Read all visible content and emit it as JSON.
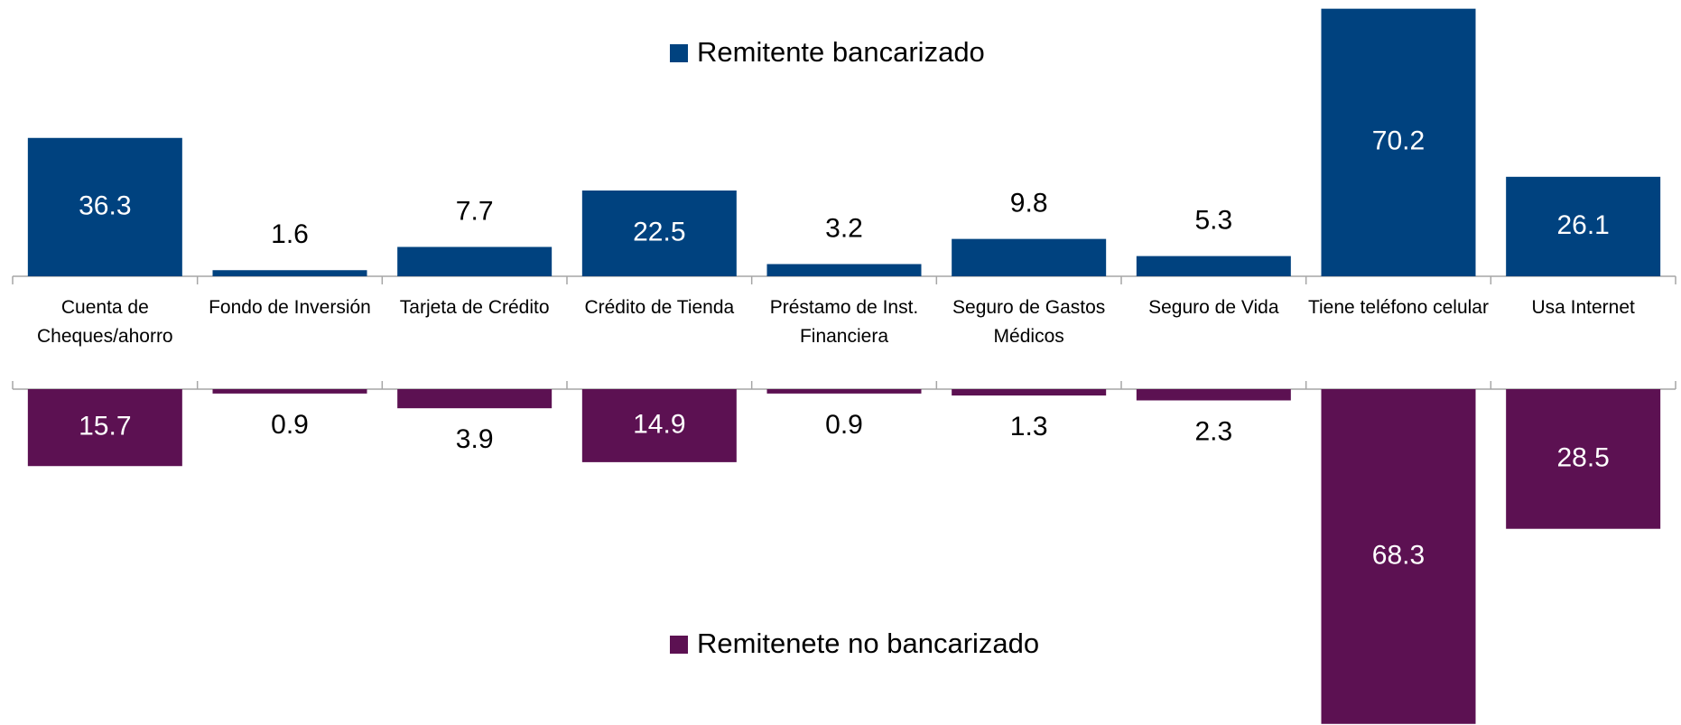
{
  "chart_data": {
    "type": "bar",
    "categories": [
      "Cuenta de Cheques/ahorro",
      "Fondo de Inversión",
      "Tarjeta de Crédito",
      "Crédito de Tienda",
      "Préstamo de Inst. Financiera",
      "Seguro de Gastos Médicos",
      "Seguro de Vida",
      "Tiene teléfono celular",
      "Usa Internet"
    ],
    "series": [
      {
        "name": "Remitente bancarizado",
        "color": "#00427f",
        "values": [
          36.3,
          1.6,
          7.7,
          22.5,
          3.2,
          9.8,
          5.3,
          70.2,
          26.1
        ]
      },
      {
        "name": "Remitenete no bancarizado",
        "color": "#5c1152",
        "axis": "y2",
        "values": [
          15.7,
          0.9,
          3.9,
          14.9,
          0.9,
          1.3,
          2.3,
          68.3,
          28.5
        ]
      }
    ],
    "ylim": [
      0,
      70
    ],
    "y2lim": [
      0,
      70
    ],
    "y2_inverted": true
  }
}
